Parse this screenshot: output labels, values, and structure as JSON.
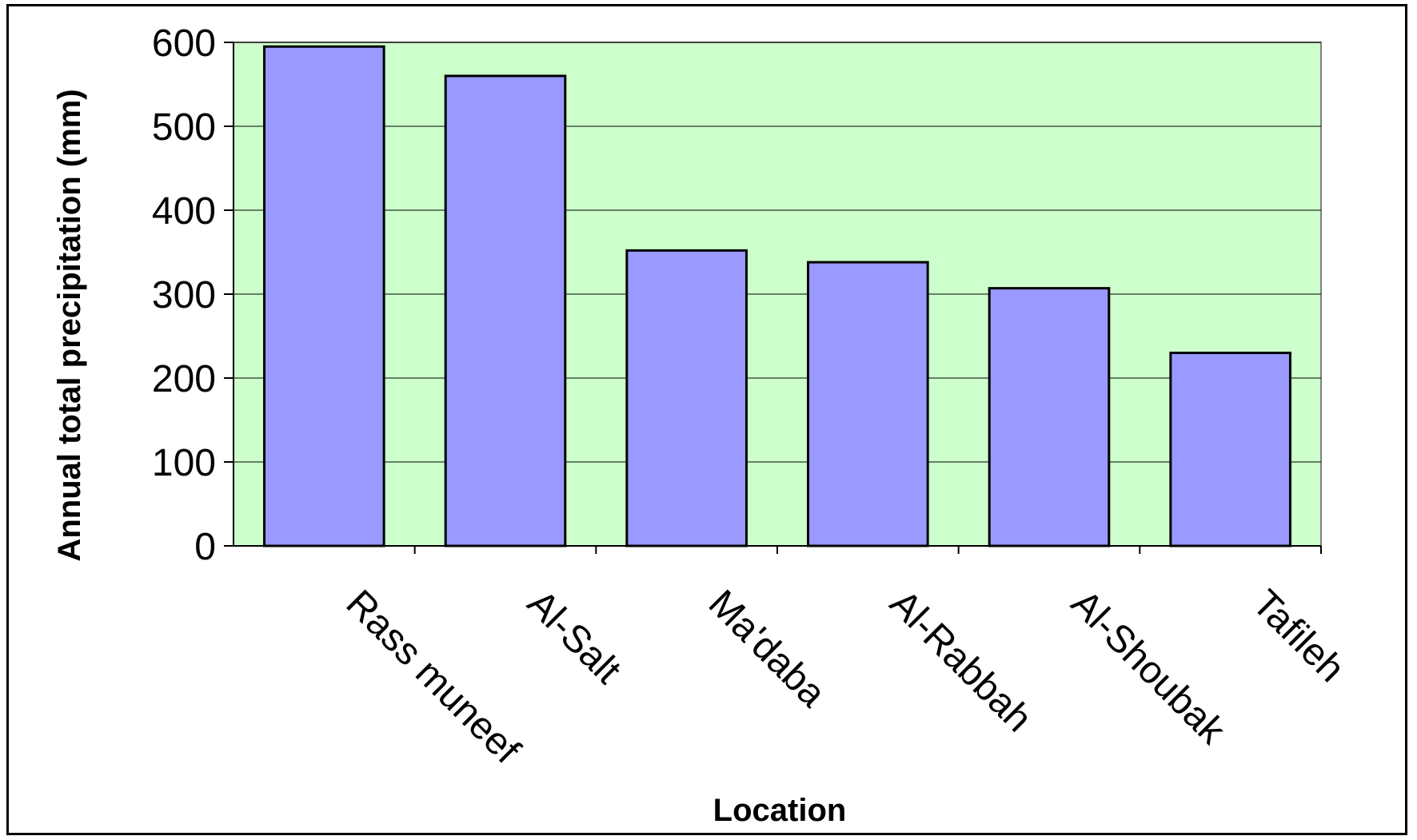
{
  "chart_data": {
    "type": "bar",
    "title": "",
    "xlabel": "Location",
    "ylabel": "Annual total precipitation (mm)",
    "categories": [
      "Rass muneef",
      "Al-Salt",
      "Ma'daba",
      "Al-Rabbah",
      "Al-Shoubak",
      "Tafileh"
    ],
    "values": [
      595,
      560,
      352,
      338,
      307,
      230
    ],
    "ylim": [
      0,
      600
    ],
    "yticks": [
      0,
      100,
      200,
      300,
      400,
      500,
      600
    ],
    "grid": true,
    "legend": "none",
    "colors": {
      "bar_fill": "#9999ff",
      "bar_stroke": "#000000",
      "plot_background": "#ccffcc",
      "gridline": "#000000",
      "plot_border": "#808080"
    }
  }
}
